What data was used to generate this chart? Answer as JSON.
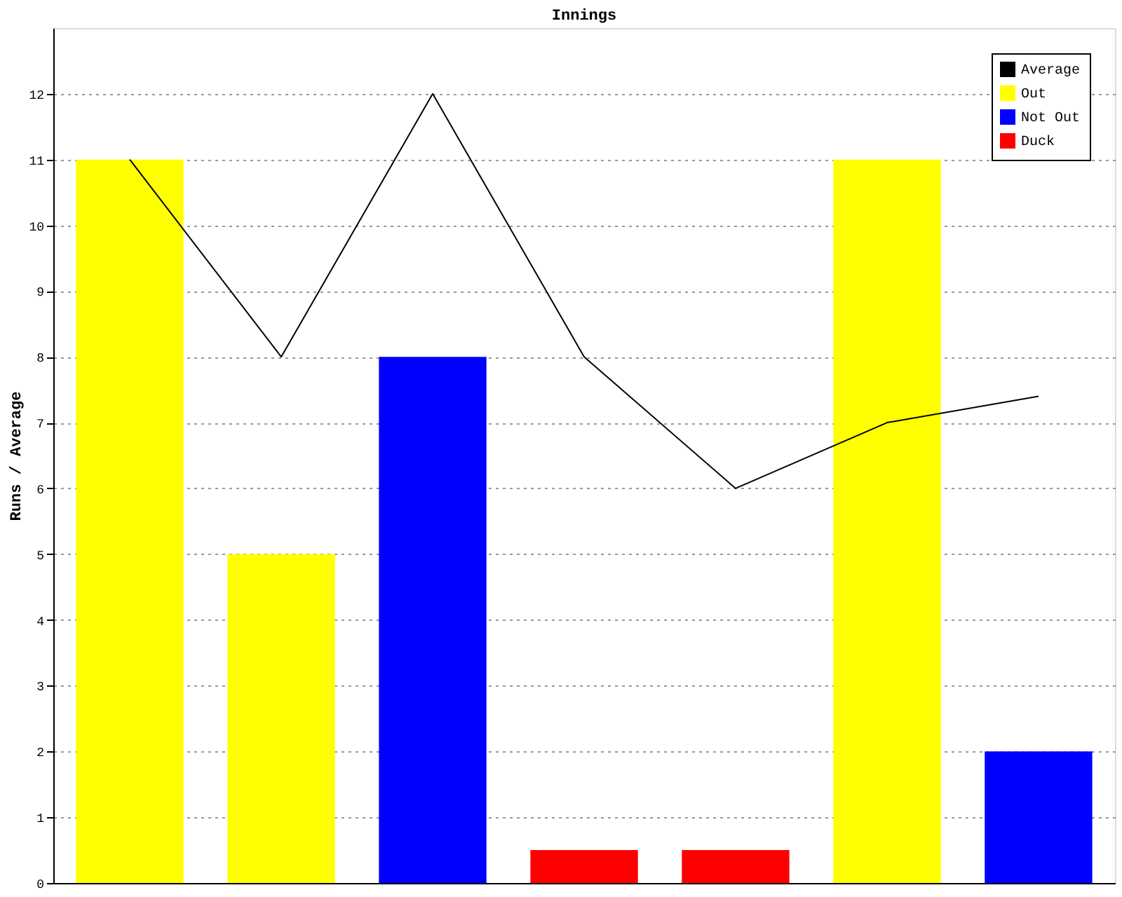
{
  "chart_data": {
    "type": "bar",
    "title": "Innings",
    "ylabel": "Runs / Average",
    "categories": [
      null,
      null,
      null,
      null,
      null,
      null,
      null
    ],
    "series": [
      {
        "name": "Average",
        "type": "line",
        "color": "#000000",
        "values": [
          11,
          8,
          12,
          8,
          6,
          7,
          7.4
        ]
      },
      {
        "name": "Out",
        "color": "#ffff00",
        "values": [
          11,
          5,
          null,
          null,
          null,
          11,
          null
        ]
      },
      {
        "name": "Not Out",
        "color": "#0000ff",
        "values": [
          null,
          null,
          8,
          null,
          null,
          null,
          2
        ]
      },
      {
        "name": "Duck",
        "color": "#ff0000",
        "values": [
          null,
          null,
          null,
          0.5,
          0.5,
          null,
          null
        ]
      }
    ],
    "ylim": [
      0,
      13
    ],
    "yticks": [
      0,
      1,
      2,
      3,
      4,
      5,
      6,
      7,
      8,
      9,
      10,
      11,
      12
    ],
    "grid": "y",
    "legend": "top right",
    "tick_labels": "y"
  }
}
